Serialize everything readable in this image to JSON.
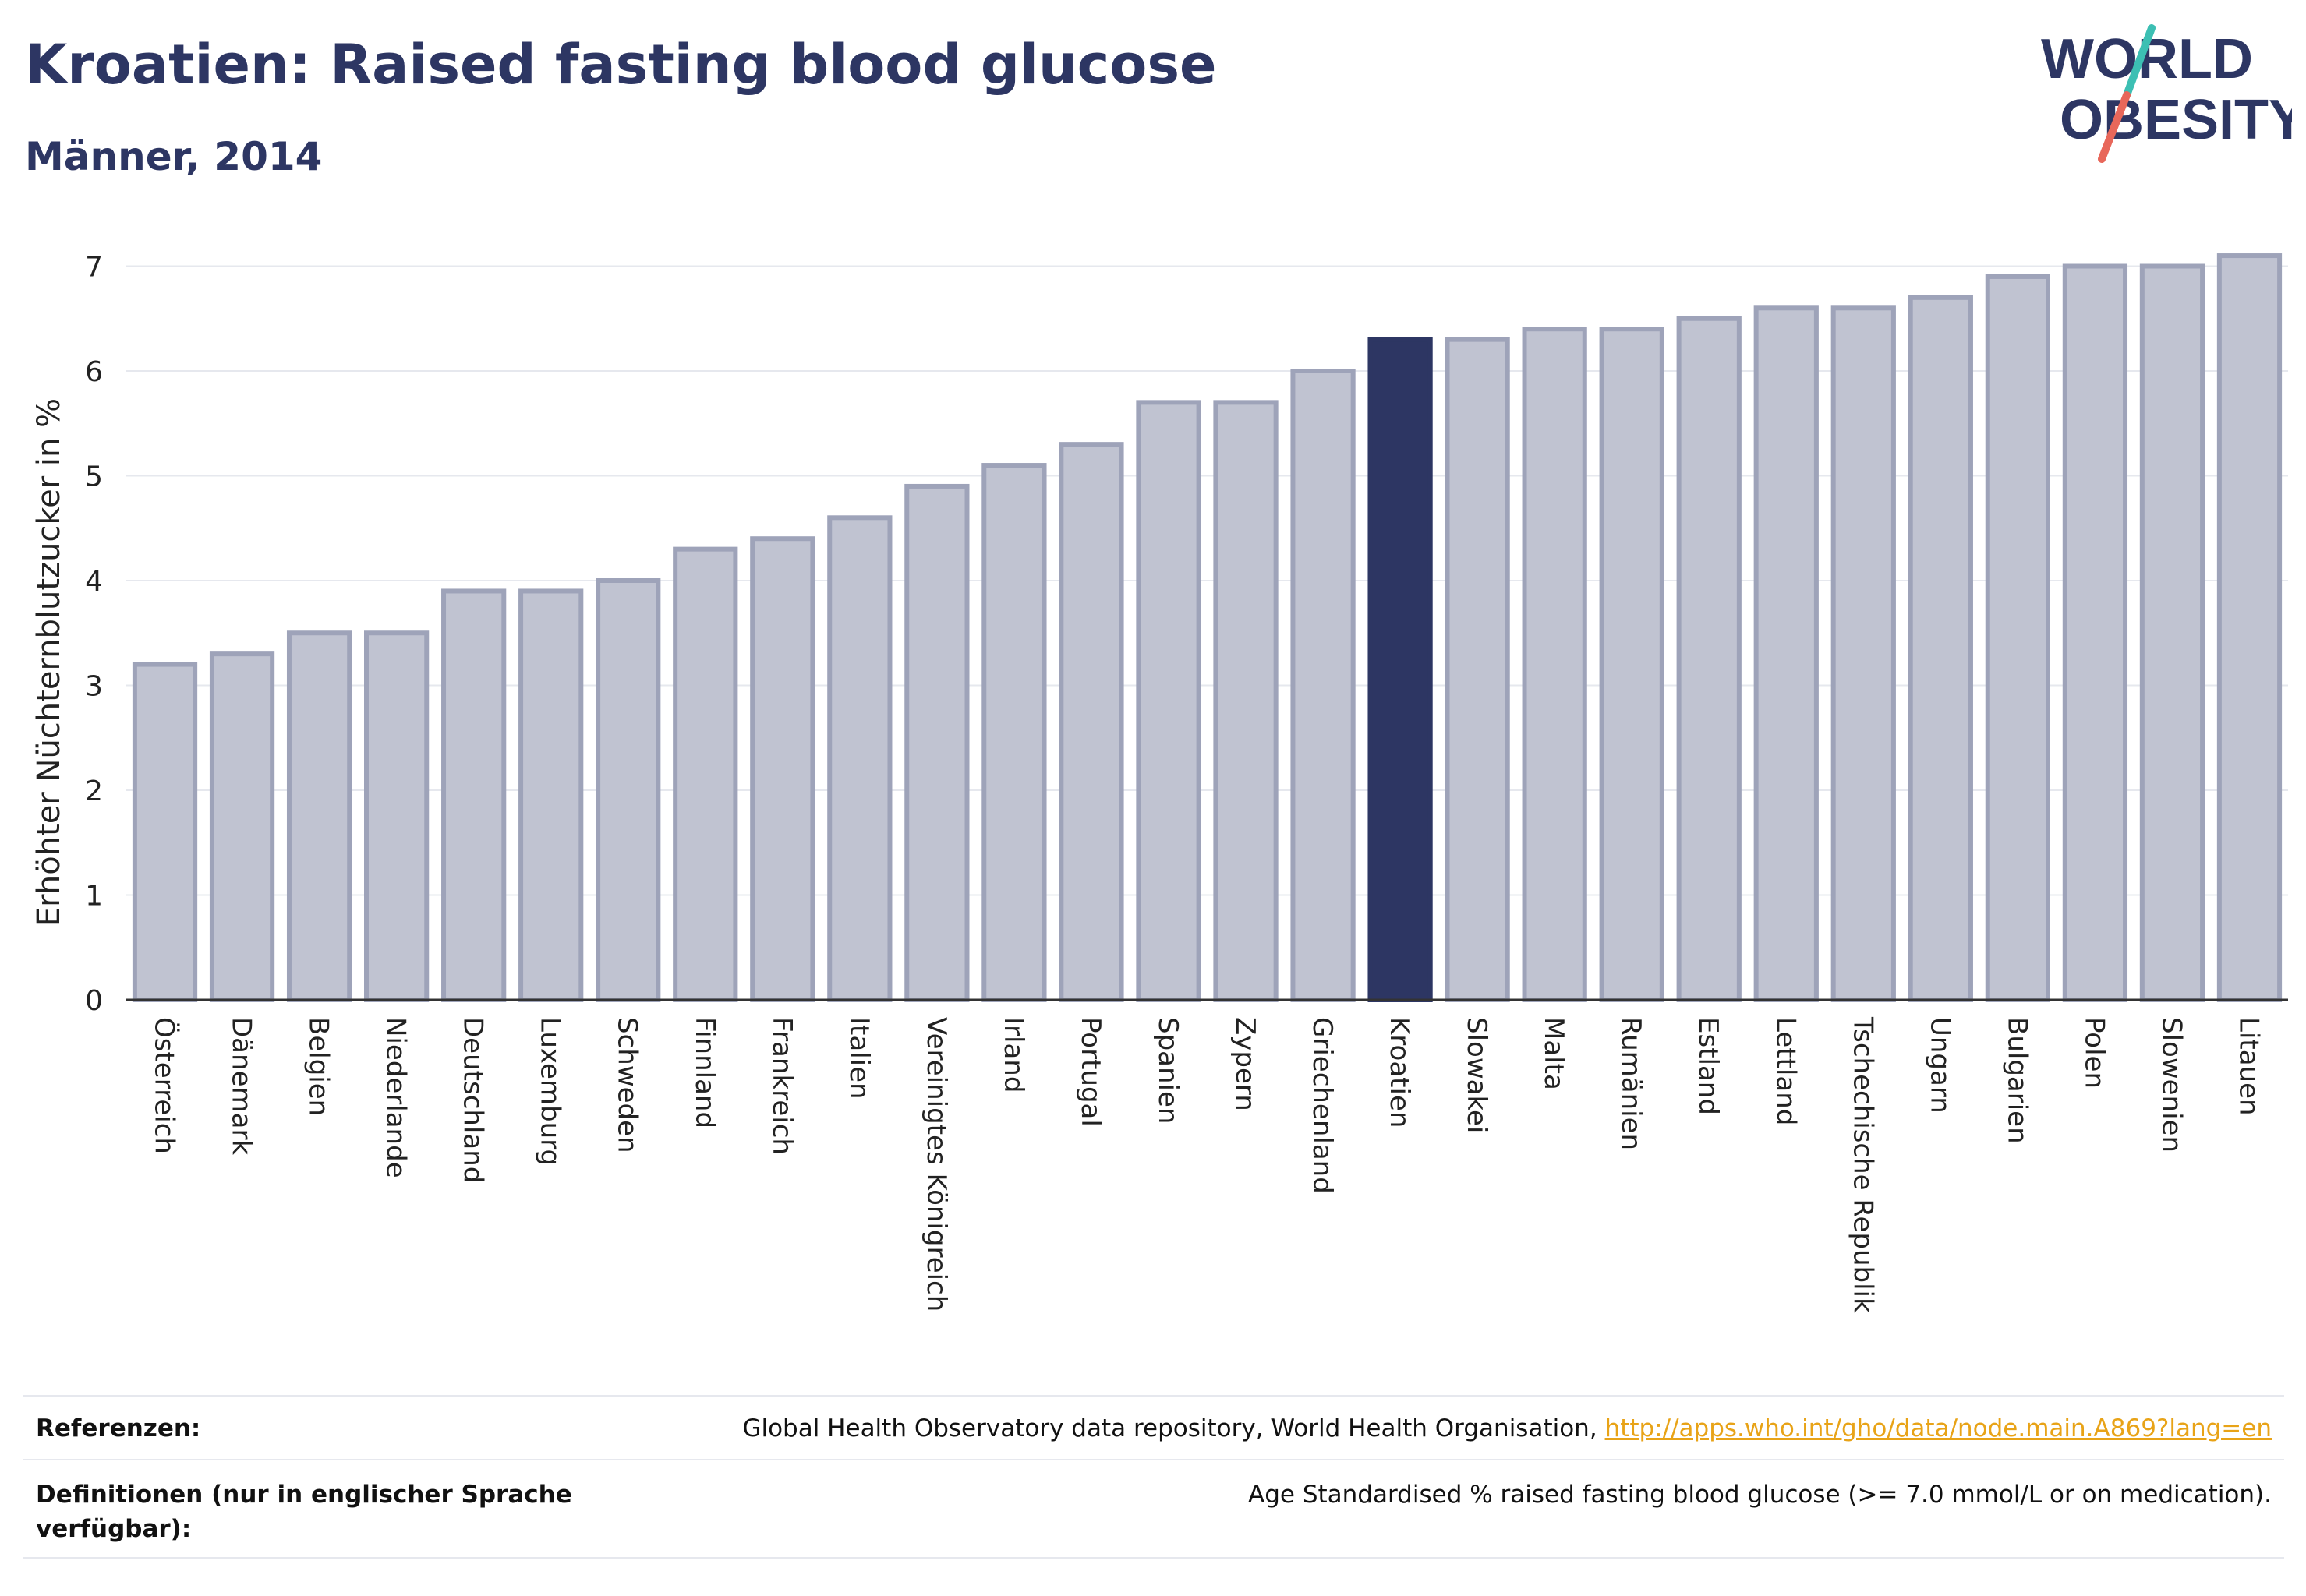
{
  "header": {
    "title": "Kroatien: Raised fasting blood glucose",
    "subtitle": "Männer, 2014"
  },
  "logo": {
    "line1": "WORLD",
    "line2": "OBESITY",
    "colors": {
      "text": "#2d3663",
      "accent_teal": "#3cbfb3",
      "accent_red": "#e8675a"
    }
  },
  "colors": {
    "bar_fill": "#c0c3d1",
    "bar_stroke": "#9ea3b9",
    "highlight": "#2d3663",
    "grid": "#e6e8ee",
    "axis": "#333333"
  },
  "chart_data": {
    "type": "bar",
    "ylabel": "Erhöhter Nüchternblutzucker in %",
    "ylim": [
      0,
      7.3
    ],
    "yticks": [
      "0",
      "1",
      "2",
      "3",
      "4",
      "5",
      "6",
      "7"
    ],
    "highlight": "Kroatien",
    "categories": [
      "Österreich",
      "Dänemark",
      "Belgien",
      "Niederlande",
      "Deutschland",
      "Luxemburg",
      "Schweden",
      "Finnland",
      "Frankreich",
      "Italien",
      "Vereinigtes Königreich",
      "Irland",
      "Portugal",
      "Spanien",
      "Zypern",
      "Griechenland",
      "Kroatien",
      "Slowakei",
      "Malta",
      "Rumänien",
      "Estland",
      "Lettland",
      "Tschechische Republik",
      "Ungarn",
      "Bulgarien",
      "Polen",
      "Slowenien",
      "Litauen"
    ],
    "values": [
      3.2,
      3.3,
      3.5,
      3.5,
      3.9,
      3.9,
      4.0,
      4.3,
      4.4,
      4.6,
      4.9,
      5.1,
      5.3,
      5.7,
      5.7,
      6.0,
      6.3,
      6.3,
      6.4,
      6.4,
      6.5,
      6.6,
      6.6,
      6.7,
      6.9,
      7.0,
      7.0,
      7.1
    ]
  },
  "footer": {
    "references_label": "Referenzen:",
    "references_text": "Global Health Observatory data repository, World Health Organisation, ",
    "references_link": "http://apps.who.int/gho/data/node.main.A869?lang=en",
    "definitions_label": "Definitionen (nur in englischer Sprache verfügbar):",
    "definitions_text": "Age Standardised % raised fasting blood glucose (>= 7.0 mmol/L or on medication)."
  }
}
